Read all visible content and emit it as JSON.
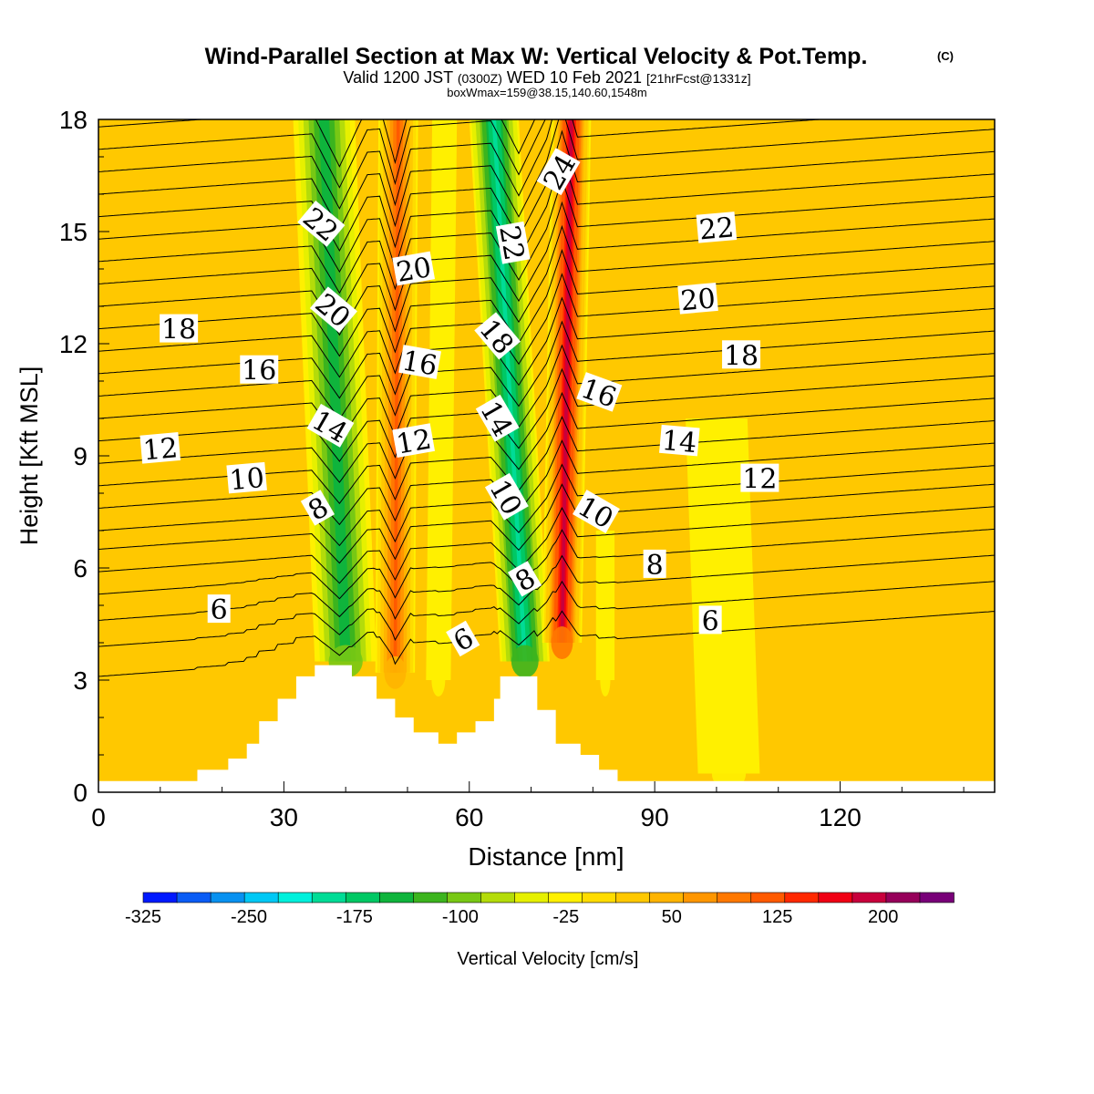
{
  "chart_data": {
    "type": "heatmap",
    "title": "Wind-Parallel Section at Max W: Vertical Velocity & Pot.Temp.",
    "title_mark": "(C)",
    "subtitle": {
      "prefix": "Valid 1200 JST",
      "utc": "(0300Z)",
      "day": "WED 10 Feb 2021",
      "forecast": "[21hrFcst@1331z]"
    },
    "subtitle2": "boxWmax=159@38.15,140.60,1548m",
    "xlabel": "Distance [nm]",
    "ylabel": "Height [Kft MSL]",
    "xlim": [
      0,
      145
    ],
    "ylim": [
      0,
      18
    ],
    "x_ticks": [
      0,
      30,
      60,
      90,
      120
    ],
    "y_ticks": [
      0,
      3,
      6,
      9,
      12,
      15,
      18
    ],
    "colorbar": {
      "label": "Vertical Velocity [cm/s]",
      "tick_labels": [
        "-325",
        "-250",
        "-175",
        "-100",
        "-25",
        "50",
        "125",
        "200"
      ],
      "tick_values": [
        -325,
        -250,
        -175,
        -100,
        -25,
        50,
        125,
        200
      ],
      "bounds": [
        -325,
        250
      ],
      "step": 25,
      "colors": [
        "#0019ff",
        "#0a5cf5",
        "#0891f0",
        "#00c8f5",
        "#00f0dc",
        "#00dc96",
        "#00c864",
        "#0fb43c",
        "#3cb41e",
        "#78c814",
        "#b4dc0a",
        "#e6f000",
        "#fff000",
        "#ffdc00",
        "#ffc800",
        "#ffb400",
        "#ff9600",
        "#ff7800",
        "#ff5a00",
        "#ff2800",
        "#f00014",
        "#c8003c",
        "#96005a",
        "#780078"
      ]
    },
    "background_color": "#ffc800",
    "terrain": [
      {
        "x": 0,
        "h": 0.3
      },
      {
        "x": 16,
        "h": 0.6
      },
      {
        "x": 21,
        "h": 0.9
      },
      {
        "x": 24,
        "h": 1.3
      },
      {
        "x": 26,
        "h": 1.9
      },
      {
        "x": 29,
        "h": 2.5
      },
      {
        "x": 32,
        "h": 3.1
      },
      {
        "x": 35,
        "h": 3.4
      },
      {
        "x": 41,
        "h": 3.1
      },
      {
        "x": 45,
        "h": 2.5
      },
      {
        "x": 48,
        "h": 2.0
      },
      {
        "x": 51,
        "h": 1.6
      },
      {
        "x": 55,
        "h": 1.3
      },
      {
        "x": 58,
        "h": 1.6
      },
      {
        "x": 61,
        "h": 1.9
      },
      {
        "x": 64,
        "h": 2.5
      },
      {
        "x": 65,
        "h": 3.1
      },
      {
        "x": 71,
        "h": 2.2
      },
      {
        "x": 74,
        "h": 1.3
      },
      {
        "x": 78,
        "h": 1.0
      },
      {
        "x": 81,
        "h": 0.6
      },
      {
        "x": 84,
        "h": 0.3
      },
      {
        "x": 145,
        "h": 0.3
      }
    ],
    "w_features": [
      {
        "x_bottom": 40,
        "x_top": 36.5,
        "y_bottom": 3.5,
        "y_top": 18,
        "half_width": 5,
        "w_min": -150
      },
      {
        "x_bottom": 48,
        "x_top": 48.5,
        "y_bottom": 3.2,
        "y_top": 18,
        "half_width": 3.2,
        "w_min": 150
      },
      {
        "x_bottom": 69,
        "x_top": 64,
        "y_bottom": 3.5,
        "y_top": 18,
        "half_width": 4,
        "w_min": -200
      },
      {
        "x_bottom": 75,
        "x_top": 76.5,
        "y_bottom": 4,
        "y_top": 18,
        "half_width": 3.2,
        "w_min": 230
      },
      {
        "x_bottom": 55,
        "x_top": 56,
        "y_bottom": 3,
        "y_top": 18,
        "half_width": 2,
        "w_min": 0
      },
      {
        "x_bottom": 82,
        "x_top": 82,
        "y_bottom": 3,
        "y_top": 7,
        "half_width": 1.5,
        "w_min": 0
      },
      {
        "x_bottom": 102,
        "x_top": 100,
        "y_bottom": 0.5,
        "y_top": 10,
        "half_width": 5,
        "w_min": -20
      }
    ],
    "theta_contours": {
      "levels_c": [
        3,
        4,
        5,
        6,
        7,
        8,
        9,
        10,
        11,
        12,
        13,
        14,
        15,
        16,
        17,
        18,
        19,
        20,
        21,
        22,
        23,
        24,
        25,
        26,
        27
      ],
      "height_at_x0": [
        3.1,
        3.9,
        4.6,
        5.3,
        5.9,
        6.5,
        7.0,
        7.6,
        8.2,
        8.8,
        9.4,
        10.0,
        10.6,
        11.2,
        11.8,
        12.4,
        13.0,
        13.6,
        14.2,
        14.8,
        15.4,
        16.0,
        16.6,
        17.2,
        17.8
      ]
    },
    "contour_labels": [
      {
        "text": "6",
        "x": 19.5,
        "y": 4.9,
        "angle": 0
      },
      {
        "text": "12",
        "x": 10,
        "y": 9.2,
        "angle": -5
      },
      {
        "text": "18",
        "x": 13,
        "y": 12.4,
        "angle": 0
      },
      {
        "text": "10",
        "x": 24,
        "y": 8.4,
        "angle": -5
      },
      {
        "text": "16",
        "x": 26,
        "y": 11.3,
        "angle": 0
      },
      {
        "text": "8",
        "x": 35.5,
        "y": 7.6,
        "angle": -30
      },
      {
        "text": "14",
        "x": 37.5,
        "y": 9.8,
        "angle": 30
      },
      {
        "text": "20",
        "x": 38,
        "y": 12.9,
        "angle": 40
      },
      {
        "text": "22",
        "x": 36,
        "y": 15.2,
        "angle": 40
      },
      {
        "text": "6",
        "x": 59,
        "y": 4.1,
        "angle": -30
      },
      {
        "text": "12",
        "x": 51,
        "y": 9.4,
        "angle": -10
      },
      {
        "text": "16",
        "x": 52,
        "y": 11.5,
        "angle": 10
      },
      {
        "text": "20",
        "x": 51,
        "y": 14.0,
        "angle": -10
      },
      {
        "text": "10",
        "x": 66,
        "y": 7.9,
        "angle": 60
      },
      {
        "text": "14",
        "x": 64.5,
        "y": 10.0,
        "angle": 60
      },
      {
        "text": "18",
        "x": 64.5,
        "y": 12.2,
        "angle": 50
      },
      {
        "text": "22",
        "x": 67,
        "y": 14.7,
        "angle": 80
      },
      {
        "text": "24",
        "x": 74.5,
        "y": 16.6,
        "angle": -60
      },
      {
        "text": "8",
        "x": 69,
        "y": 5.7,
        "angle": -30
      },
      {
        "text": "10",
        "x": 80.5,
        "y": 7.5,
        "angle": 30
      },
      {
        "text": "16",
        "x": 81,
        "y": 10.7,
        "angle": 20
      },
      {
        "text": "8",
        "x": 90,
        "y": 6.1,
        "angle": 0
      },
      {
        "text": "6",
        "x": 99,
        "y": 4.6,
        "angle": 0
      },
      {
        "text": "14",
        "x": 94,
        "y": 9.4,
        "angle": 5
      },
      {
        "text": "20",
        "x": 97,
        "y": 13.2,
        "angle": -5
      },
      {
        "text": "22",
        "x": 100,
        "y": 15.1,
        "angle": -5
      },
      {
        "text": "18",
        "x": 104,
        "y": 11.7,
        "angle": 0
      },
      {
        "text": "12",
        "x": 107,
        "y": 8.4,
        "angle": 0
      }
    ]
  }
}
